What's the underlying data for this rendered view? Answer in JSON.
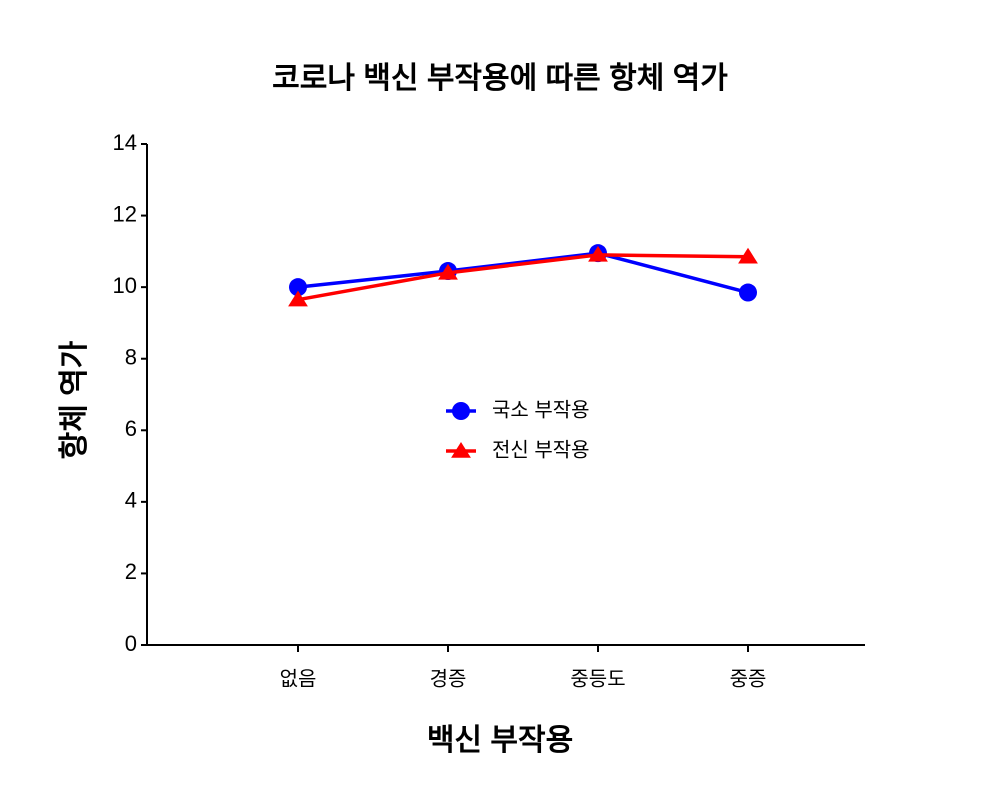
{
  "chart_data": {
    "type": "line",
    "title": "코로나 백신 부작용에 따른 항체 역가",
    "x_label": "백신 부작용",
    "y_label": "항체 역가",
    "categories": [
      "없음",
      "경증",
      "중등도",
      "중증"
    ],
    "series": [
      {
        "name": "국소 부작용",
        "color": "#0000ff",
        "marker": "circle",
        "values": [
          10.0,
          10.45,
          10.95,
          9.85
        ]
      },
      {
        "name": "전신 부작용",
        "color": "#ff0000",
        "marker": "triangle",
        "values": [
          9.65,
          10.4,
          10.9,
          10.85
        ]
      }
    ],
    "ylim": [
      0,
      14
    ],
    "yticks": [
      0,
      2,
      4,
      6,
      8,
      10,
      12,
      14
    ],
    "grid": false
  }
}
